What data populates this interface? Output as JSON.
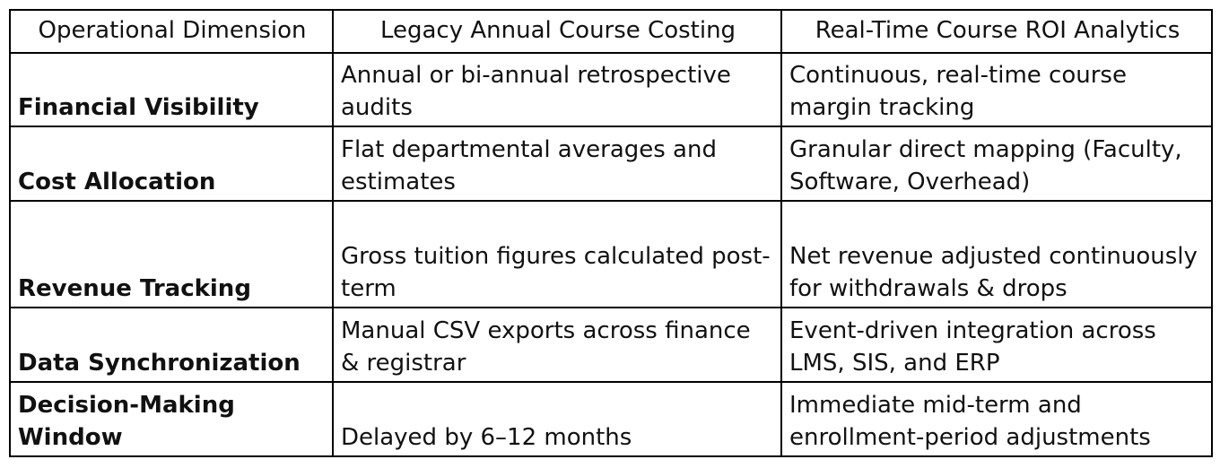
{
  "table": {
    "header": [
      "Operational Dimension",
      "Legacy Annual Course Costing",
      "Real-Time Course ROI Analytics"
    ],
    "rows": [
      [
        "Financial Visibility",
        "Annual or bi-annual retrospective audits",
        "Continuous, real-time course margin tracking"
      ],
      [
        "Cost Allocation",
        "Flat departmental averages and estimates",
        "Granular direct mapping (Faculty, Software, Overhead)"
      ],
      [
        "Revenue Tracking",
        "Gross tuition figures calculated post-term",
        "Net revenue adjusted continuously for withdrawals & drops"
      ],
      [
        "Data Synchronization",
        "Manual CSV exports across finance & registrar",
        "Event-driven integration across LMS, SIS, and ERP"
      ],
      [
        "Decision-Making Window",
        "Delayed by 6–12 months",
        "Immediate mid-term and enrollment-period adjustments"
      ]
    ]
  }
}
